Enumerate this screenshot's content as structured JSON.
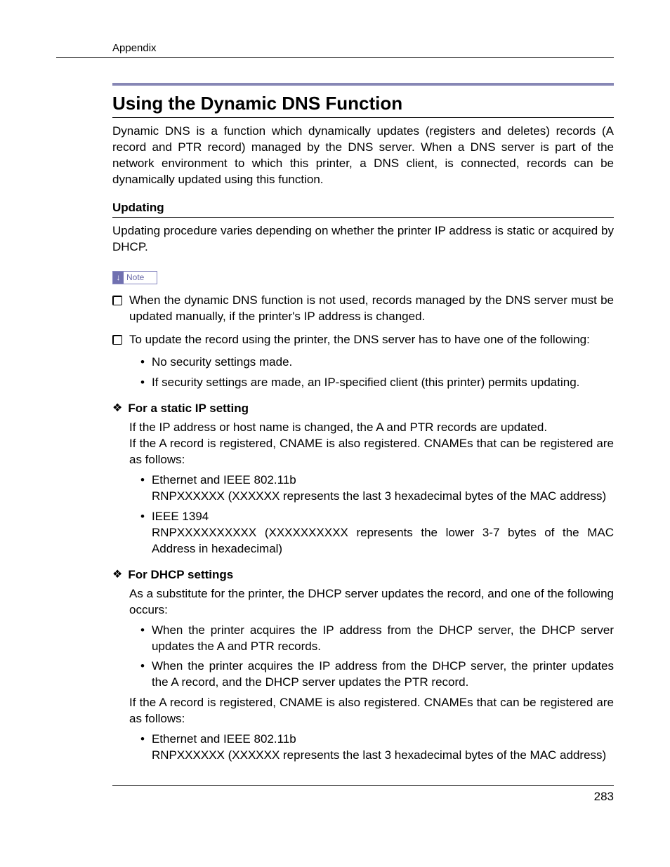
{
  "header": {
    "section": "Appendix"
  },
  "title": "Using the Dynamic DNS Function",
  "intro": "Dynamic DNS is a function which dynamically updates (registers and deletes) records (A record and PTR record) managed by the DNS server. When a DNS server is part of the network environment to which this printer, a DNS client, is connected, records can be dynamically updated using this function.",
  "updating": {
    "heading": "Updating",
    "intro": "Updating procedure varies depending on whether the printer IP address is static or acquired by DHCP.",
    "note_label": "Note",
    "note1": "When the dynamic DNS function is not used, records managed by the DNS server must be updated manually, if the printer's IP address is changed.",
    "note2": "To update the record using the printer, the DNS server has to have one of the following:",
    "note2_sub1": "No security settings made.",
    "note2_sub2": "If security settings are made, an IP-specified client (this printer) permits updating."
  },
  "static": {
    "title": "For a static IP setting",
    "body1": "If the IP address or host name is changed, the A and PTR records are updated.",
    "body2": "If the A record is registered, CNAME is also registered. CNAMEs that can be registered are as follows:",
    "b1a": "Ethernet and IEEE 802.11b",
    "b1b": "RNPXXXXXX (XXXXXX represents the last 3 hexadecimal bytes of the MAC address)",
    "b2a": "IEEE 1394",
    "b2b": "RNPXXXXXXXXXX (XXXXXXXXXX represents the lower 3-7 bytes of the MAC Address in hexadecimal)"
  },
  "dhcp": {
    "title": "For DHCP settings",
    "body1": "As a substitute for the printer, the DHCP server updates the record, and one of the following occurs:",
    "b1": "When the printer acquires the IP address from the DHCP server, the DHCP server updates the A and PTR records.",
    "b2": "When the printer acquires the IP address from the DHCP server, the printer updates the A record, and the DHCP server updates the PTR record.",
    "body2": "If the A record is registered, CNAME is also registered. CNAMEs that can be registered are as follows:",
    "b3a": "Ethernet and IEEE 802.11b",
    "b3b": "RNPXXXXXX (XXXXXX represents the last 3 hexadecimal bytes of the MAC address)"
  },
  "page_number": "283"
}
